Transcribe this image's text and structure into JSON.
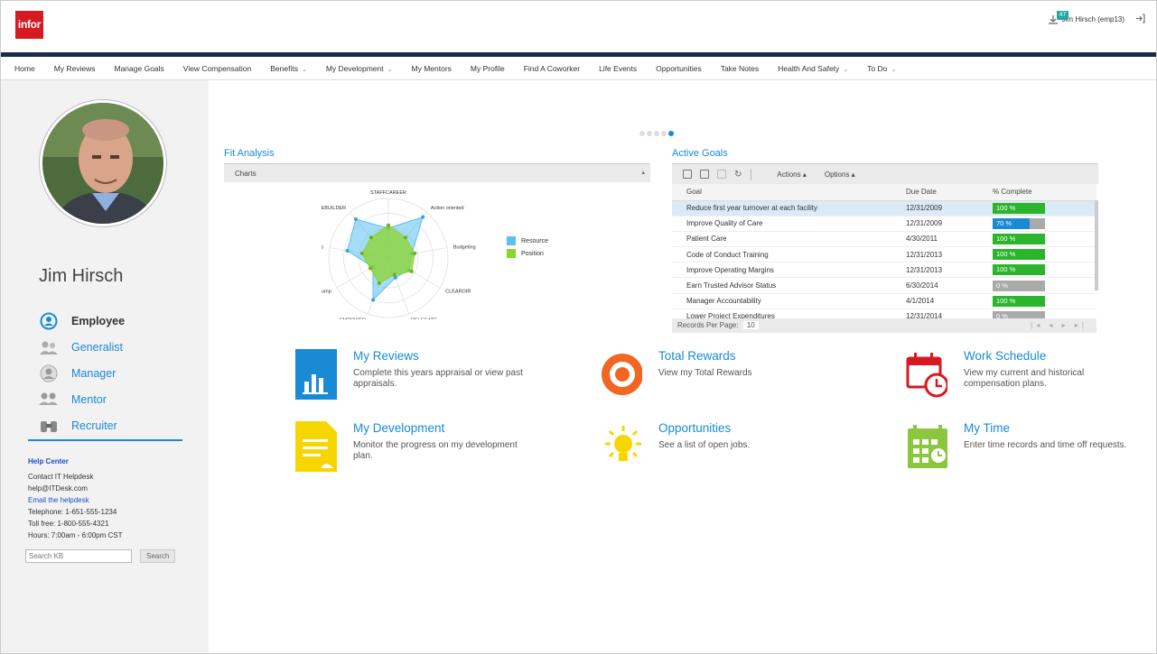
{
  "app": {
    "logo_text": "infor"
  },
  "user": {
    "badge": "47",
    "name": "Jim Hirsch (emp13)"
  },
  "nav": [
    {
      "label": "Home",
      "dropdown": false
    },
    {
      "label": "My Reviews",
      "dropdown": false
    },
    {
      "label": "Manage Goals",
      "dropdown": false
    },
    {
      "label": "View Compensation",
      "dropdown": false
    },
    {
      "label": "Benefits",
      "dropdown": true
    },
    {
      "label": "My Development",
      "dropdown": true
    },
    {
      "label": "My Mentors",
      "dropdown": false
    },
    {
      "label": "My Profile",
      "dropdown": false
    },
    {
      "label": "Find A Coworker",
      "dropdown": false
    },
    {
      "label": "Life Events",
      "dropdown": false
    },
    {
      "label": "Opportunities",
      "dropdown": false
    },
    {
      "label": "Take Notes",
      "dropdown": false
    },
    {
      "label": "Health And Safety",
      "dropdown": true
    },
    {
      "label": "To Do",
      "dropdown": true
    }
  ],
  "sidebar": {
    "person_name": "Jim Hirsch",
    "roles": [
      {
        "label": "Employee",
        "icon": "employee-icon",
        "active": true
      },
      {
        "label": "Generalist",
        "icon": "generalist-icon",
        "active": false
      },
      {
        "label": "Manager",
        "icon": "manager-icon",
        "active": false
      },
      {
        "label": "Mentor",
        "icon": "mentor-icon",
        "active": false
      },
      {
        "label": "Recruiter",
        "icon": "recruiter-icon",
        "active": false
      }
    ],
    "help": {
      "title": "Help Center",
      "contact": "Contact IT Helpdesk",
      "email": "help@ITDesk.com",
      "email_link": "Email the helpdesk",
      "telephone": "Telephone: 1-651-555-1234",
      "tollfree": "Toll free: 1-800-555-4321",
      "hours": "Hours: 7:00am - 6:00pm CST"
    },
    "search": {
      "placeholder": "Search KB",
      "button": "Search"
    }
  },
  "fit_analysis": {
    "title": "Fit Analysis",
    "dropdown_label": "Charts",
    "chart_data": {
      "type": "radar",
      "axes": [
        "STAFFCAREER",
        "Action oriented",
        "Budgeting",
        "CLEAROIR",
        "DELEGATE",
        "EMPOWER",
        "Infusion Pump",
        "Motivates",
        "PEOPLEBUILDER"
      ],
      "series": [
        {
          "name": "Resource",
          "values": [
            0.5,
            0.9,
            0.4,
            0.4,
            0.35,
            0.75,
            0.3,
            0.7,
            0.85
          ]
        },
        {
          "name": "Position",
          "values": [
            0.55,
            0.45,
            0.45,
            0.45,
            0.3,
            0.45,
            0.35,
            0.45,
            0.45
          ]
        }
      ],
      "colors": {
        "Resource": "#5bc0f0",
        "Position": "#8cd42c"
      }
    }
  },
  "active_goals": {
    "title": "Active Goals",
    "toolbar": {
      "actions": "Actions",
      "options": "Options"
    },
    "columns": [
      "Goal",
      "Due Date",
      "% Complete"
    ],
    "rows": [
      {
        "goal": "Reduce first year turnover at each facility",
        "due": "12/31/2009",
        "pct": "100 %",
        "value": 100
      },
      {
        "goal": "Improve Quality of Care",
        "due": "12/31/2009",
        "pct": "70 %",
        "value": 70
      },
      {
        "goal": "Patient Care",
        "due": "4/30/2011",
        "pct": "100 %",
        "value": 100
      },
      {
        "goal": "Code of Conduct Training",
        "due": "12/31/2013",
        "pct": "100 %",
        "value": 100
      },
      {
        "goal": "Improve Operating Margins",
        "due": "12/31/2013",
        "pct": "100 %",
        "value": 100
      },
      {
        "goal": "Earn Trusted Advisor Status",
        "due": "6/30/2014",
        "pct": "0 %",
        "value": 0
      },
      {
        "goal": "Manager Accountability",
        "due": "4/1/2014",
        "pct": "100 %",
        "value": 100
      },
      {
        "goal": "Lower Project Expenditures",
        "due": "12/31/2014",
        "pct": "0 %",
        "value": 0
      }
    ],
    "records_label": "Records Per Page:",
    "records_value": "10"
  },
  "tiles": [
    {
      "title": "My Reviews",
      "desc": "Complete this years appraisal or view past appraisals.",
      "icon": "reviews-chart-icon"
    },
    {
      "title": "Total Rewards",
      "desc": "View my Total Rewards",
      "icon": "rewards-icon"
    },
    {
      "title": "Work Schedule",
      "desc": "View my current and historical compensation plans.",
      "icon": "calendar-clock-icon"
    },
    {
      "title": "My Development",
      "desc": "Monitor the progress on my development plan.",
      "icon": "document-icon"
    },
    {
      "title": "Opportunities",
      "desc": "See a list of open jobs.",
      "icon": "lightbulb-icon"
    },
    {
      "title": "My Time",
      "desc": "Enter time records and time off requests.",
      "icon": "timesheet-icon"
    }
  ]
}
